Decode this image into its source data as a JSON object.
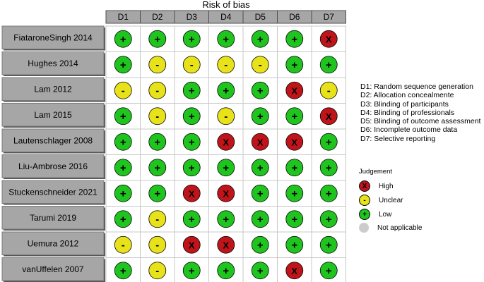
{
  "chart_data": {
    "type": "table",
    "title": "Risk of bias",
    "domains": [
      "D1",
      "D2",
      "D3",
      "D4",
      "D5",
      "D6",
      "D7"
    ],
    "studies": [
      {
        "name": "FiataroneSingh 2014",
        "judgements": [
          "Low",
          "Low",
          "Low",
          "Low",
          "Low",
          "Low",
          "High"
        ]
      },
      {
        "name": "Hughes 2014",
        "judgements": [
          "Low",
          "Unclear",
          "Unclear",
          "Unclear",
          "Unclear",
          "Low",
          "Low"
        ]
      },
      {
        "name": "Lam 2012",
        "judgements": [
          "Unclear",
          "Unclear",
          "Low",
          "Low",
          "Low",
          "High",
          "Unclear"
        ]
      },
      {
        "name": "Lam 2015",
        "judgements": [
          "Low",
          "Unclear",
          "Low",
          "Unclear",
          "Low",
          "Low",
          "High"
        ]
      },
      {
        "name": "Lautenschlager 2008",
        "judgements": [
          "Low",
          "Low",
          "Low",
          "High",
          "High",
          "High",
          "Low"
        ]
      },
      {
        "name": "Liu-Ambrose 2016",
        "judgements": [
          "Low",
          "Low",
          "Low",
          "Low",
          "Low",
          "Low",
          "Low"
        ]
      },
      {
        "name": "Stuckenschneider 2021",
        "judgements": [
          "Low",
          "Low",
          "High",
          "High",
          "Low",
          "Low",
          "Low"
        ]
      },
      {
        "name": "Tarumi 2019",
        "judgements": [
          "Low",
          "Unclear",
          "Low",
          "Low",
          "Low",
          "Low",
          "Low"
        ]
      },
      {
        "name": "Uemura 2012",
        "judgements": [
          "Unclear",
          "Unclear",
          "High",
          "High",
          "Low",
          "Low",
          "Low"
        ]
      },
      {
        "name": "vanUffelen 2007",
        "judgements": [
          "Low",
          "Unclear",
          "Low",
          "Low",
          "Low",
          "High",
          "Low"
        ]
      }
    ],
    "domain_legend": [
      "D1: Random sequence generation",
      "D2: Allocation concealmente",
      "D3: Blinding of participants",
      "D4: Blinding of professionals",
      "D5: Blinding of outcome assessment",
      "D6: Incomplete outcome data",
      "D7: Selective reporting"
    ],
    "judgement_title": "Judgement",
    "judgement_legend": [
      {
        "key": "High",
        "label": "High",
        "symbol": "X",
        "color": "#c0141b"
      },
      {
        "key": "Unclear",
        "label": "Unclear",
        "symbol": "-",
        "color": "#e8e21a"
      },
      {
        "key": "Low",
        "label": "Low",
        "symbol": "+",
        "color": "#1fc41f"
      },
      {
        "key": "NA",
        "label": "Not applicable",
        "symbol": "",
        "color": "#cccccc"
      }
    ]
  }
}
